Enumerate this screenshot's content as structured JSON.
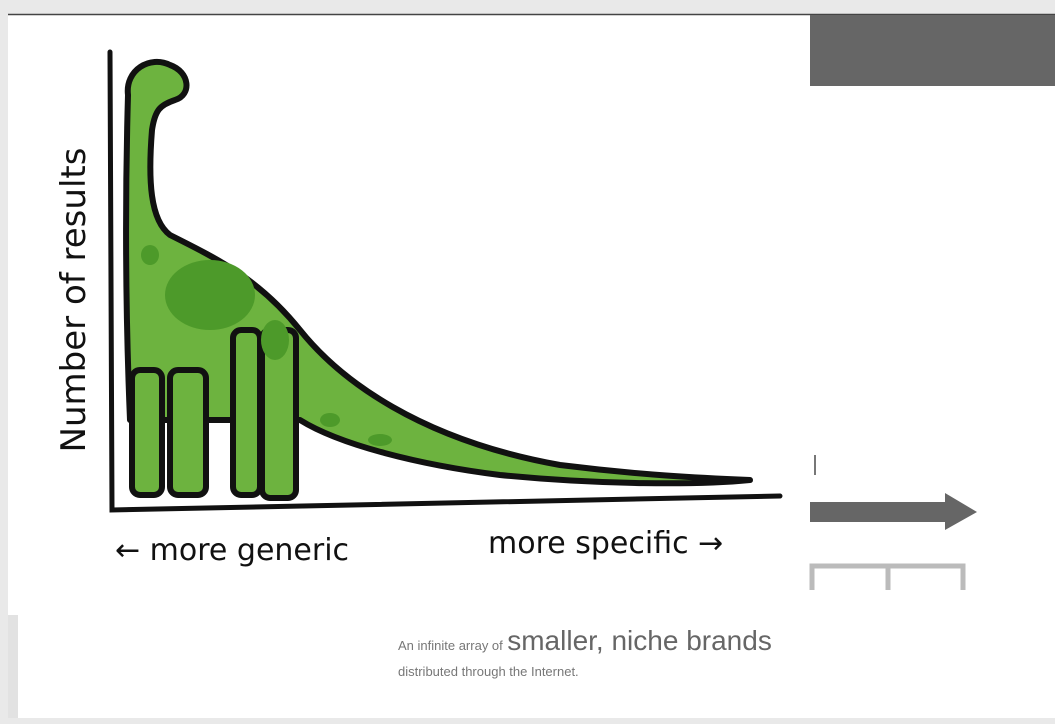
{
  "illustration": {
    "y_label": "Number of results",
    "x_left_label": "← more generic",
    "x_right_label": "more specific →"
  },
  "caption": {
    "lead": "An infinite array of",
    "emphasis": "smaller, niche brands",
    "line2": "distributed through the Internet."
  }
}
